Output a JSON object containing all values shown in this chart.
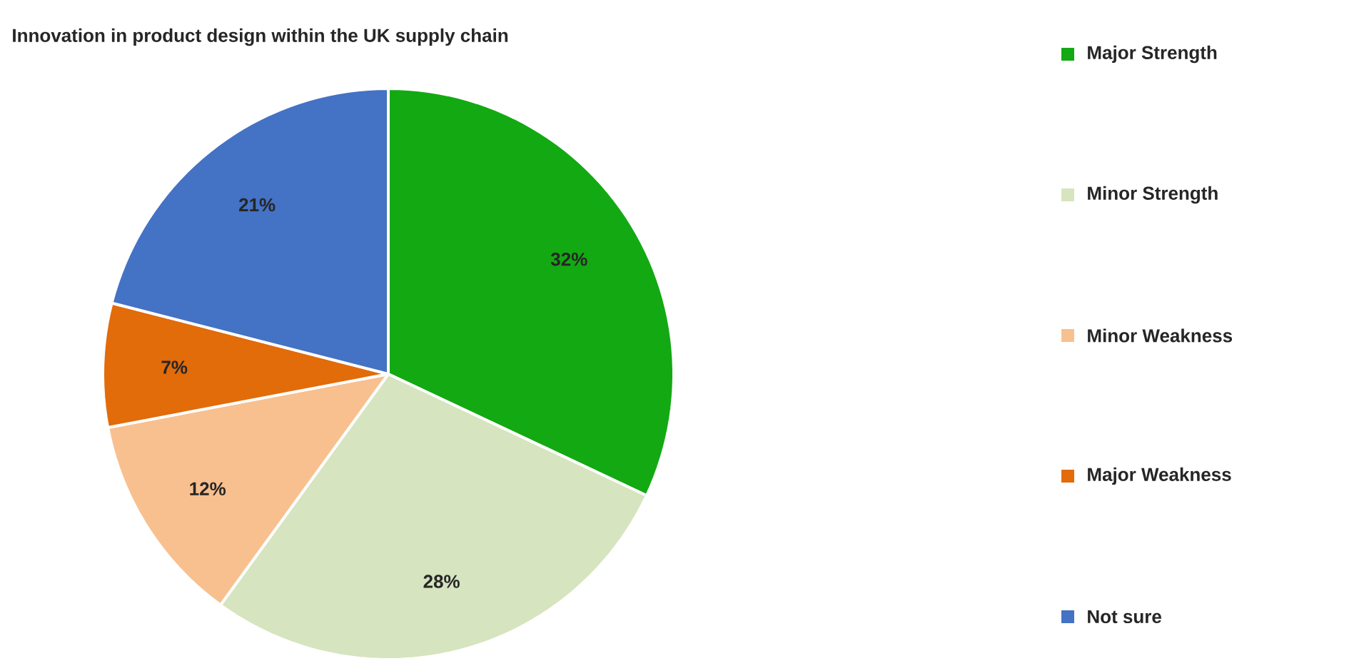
{
  "chart_data": {
    "type": "pie",
    "title": "Innovation in product design within the UK supply chain",
    "categories": [
      "Major Strength",
      "Minor Strength",
      "Minor Weakness",
      "Major Weakness",
      "Not sure"
    ],
    "values": [
      32,
      28,
      12,
      7,
      21
    ],
    "value_labels": [
      "32%",
      "28%",
      "12%",
      "7%",
      "21%"
    ],
    "colors": [
      "#13a913",
      "#d6e4bf",
      "#f8c08f",
      "#e26b0a",
      "#4472c4"
    ],
    "legend": "right"
  }
}
